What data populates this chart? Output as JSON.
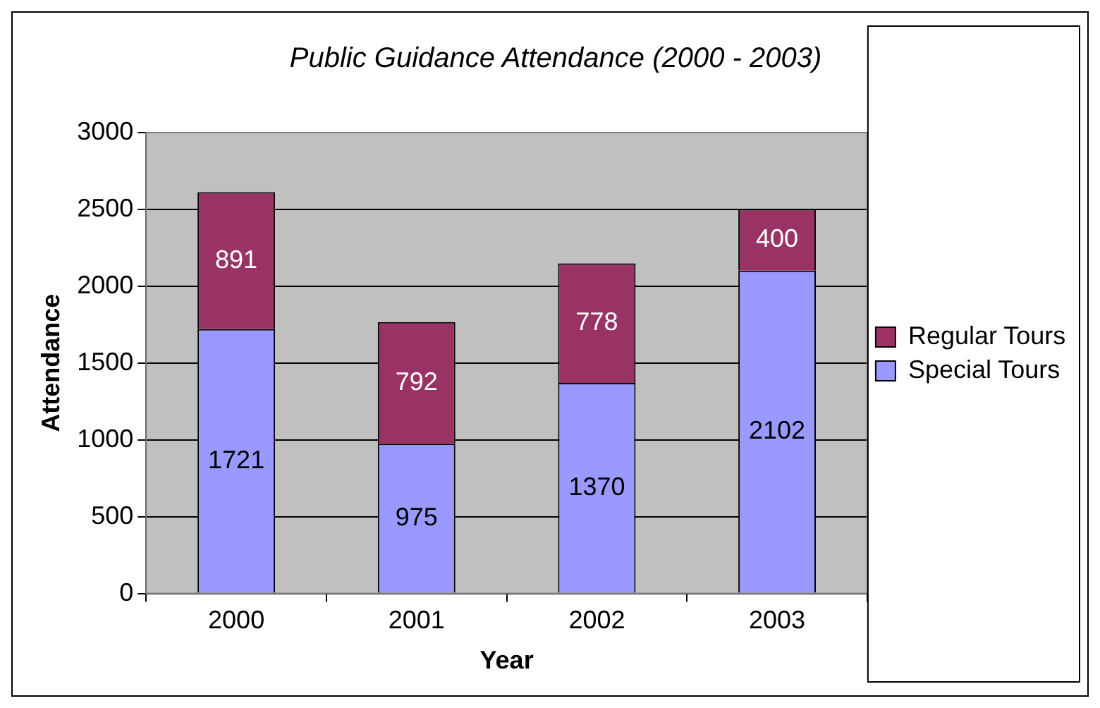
{
  "chart_data": {
    "type": "bar",
    "title": "Public Guidance Attendance (2000 - 2003)",
    "xlabel": "Year",
    "ylabel": "Attendance",
    "categories": [
      "2000",
      "2001",
      "2002",
      "2003"
    ],
    "stacked": true,
    "series": [
      {
        "name": "Special Tours",
        "color": "#9999ff",
        "values": [
          1721,
          975,
          1370,
          2102
        ]
      },
      {
        "name": "Regular Tours",
        "color": "#993366",
        "values": [
          891,
          792,
          778,
          400
        ]
      }
    ],
    "ylim": [
      0,
      3000
    ],
    "yticks": [
      0,
      500,
      1000,
      1500,
      2000,
      2500,
      3000
    ],
    "grid": "y",
    "legend": "right",
    "data_labels": true
  }
}
